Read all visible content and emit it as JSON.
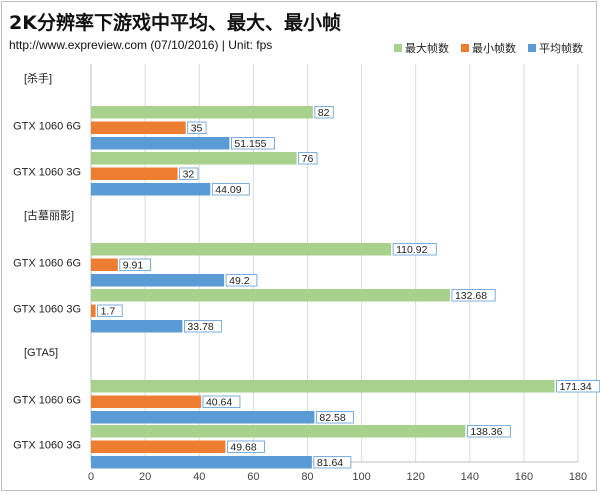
{
  "title": "2K分辨率下游戏中平均、最大、最小帧",
  "subtitle": "http://www.expreview.com (07/10/2016) | Unit: fps",
  "chart_data": {
    "type": "bar",
    "orientation": "horizontal",
    "xlim": [
      0,
      180
    ],
    "x_ticks": [
      0,
      20,
      40,
      60,
      80,
      100,
      120,
      140,
      160,
      180
    ],
    "grid": "vertical gridlines on",
    "legend_position": "top-right",
    "series_colors": {
      "最大帧数": "#a9d18e",
      "最小帧数": "#ed7d31",
      "平均帧数": "#5b9bd5"
    },
    "legend": [
      "最大帧数",
      "最小帧数",
      "平均帧数"
    ],
    "groups": [
      {
        "label": "[杀手]",
        "cards": [
          {
            "name": "GTX 1060 6G",
            "max": 82,
            "min": 35,
            "avg": 51.155
          },
          {
            "name": "GTX 1060 3G",
            "max": 76,
            "min": 32,
            "avg": 44.09
          }
        ]
      },
      {
        "label": "[古墓丽影]",
        "cards": [
          {
            "name": "GTX 1060 6G",
            "max": 110.92,
            "min": 9.91,
            "avg": 49.2
          },
          {
            "name": "GTX 1060 3G",
            "max": 132.68,
            "min": 1.7,
            "avg": 33.78
          }
        ]
      },
      {
        "label": "[GTA5]",
        "cards": [
          {
            "name": "GTX 1060 6G",
            "max": 171.34,
            "min": 40.64,
            "avg": 82.58
          },
          {
            "name": "GTX 1060 3G",
            "max": 138.36,
            "min": 49.68,
            "avg": 81.64
          }
        ]
      }
    ]
  }
}
